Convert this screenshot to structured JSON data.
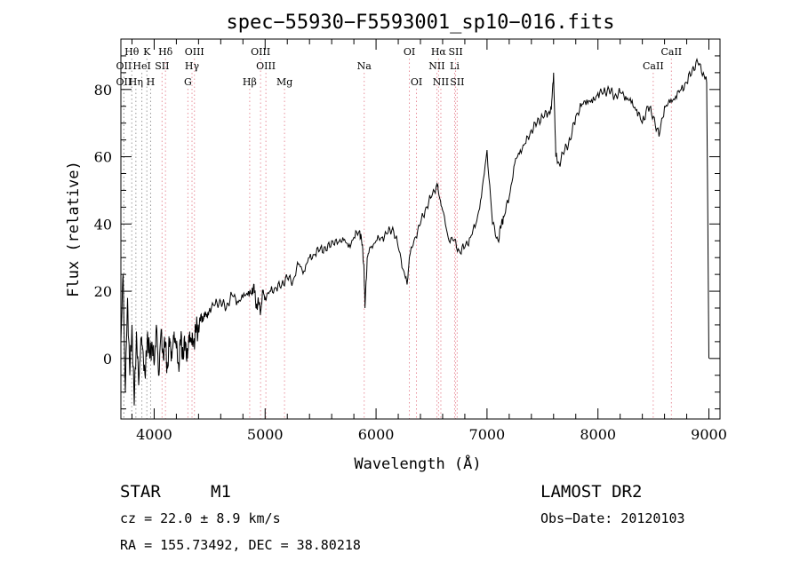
{
  "chart_data": {
    "type": "line",
    "title": "spec−55930−F5593001_sp10−016.fits",
    "xlabel": "Wavelength (Å)",
    "ylabel": "Flux (relative)",
    "xlim": [
      3700,
      9100
    ],
    "ylim": [
      -18,
      95
    ],
    "x_ticks": [
      4000,
      5000,
      6000,
      7000,
      8000,
      9000
    ],
    "y_ticks": [
      0,
      20,
      40,
      60,
      80
    ],
    "series": [
      {
        "x": [
          3700,
          3720,
          3740,
          3760,
          3780,
          3800,
          3820,
          3840,
          3860,
          3880,
          3900,
          3920,
          3940,
          3960,
          3980,
          4000,
          4020,
          4040,
          4060,
          4080,
          4100,
          4120,
          4140,
          4160,
          4180,
          4200,
          4220,
          4240,
          4260,
          4280,
          4300,
          4320,
          4340,
          4360,
          4380,
          4400,
          4420,
          4440,
          4460,
          4480,
          4500,
          4550,
          4600,
          4650,
          4700,
          4750,
          4800,
          4850,
          4880,
          4900,
          4920,
          4940,
          4960,
          4980,
          5000,
          5050,
          5100,
          5150,
          5200,
          5250,
          5300,
          5350,
          5400,
          5450,
          5500,
          5550,
          5600,
          5650,
          5700,
          5750,
          5800,
          5850,
          5870,
          5890,
          5900,
          5920,
          5950,
          6000,
          6050,
          6100,
          6150,
          6200,
          6250,
          6280,
          6300,
          6350,
          6400,
          6450,
          6500,
          6550,
          6560,
          6600,
          6650,
          6700,
          6750,
          6800,
          6850,
          6900,
          6950,
          7000,
          7050,
          7100,
          7130,
          7150,
          7200,
          7250,
          7300,
          7350,
          7400,
          7450,
          7500,
          7550,
          7580,
          7600,
          7620,
          7650,
          7700,
          7750,
          7800,
          7850,
          7900,
          7950,
          8000,
          8050,
          8100,
          8150,
          8200,
          8250,
          8300,
          8350,
          8400,
          8450,
          8500,
          8550,
          8600,
          8650,
          8700,
          8750,
          8800,
          8850,
          8900,
          8950,
          8980,
          9000
        ],
        "y": [
          5,
          25,
          -10,
          18,
          -5,
          10,
          -14,
          8,
          -8,
          6,
          2,
          -6,
          8,
          0,
          5,
          -2,
          10,
          -5,
          7,
          2,
          4,
          -3,
          6,
          0,
          8,
          3,
          -2,
          6,
          1,
          5,
          0,
          8,
          4,
          6,
          9,
          8,
          13,
          11,
          14,
          12,
          15,
          16,
          17,
          15,
          19,
          17,
          18,
          20,
          19,
          22,
          15,
          17,
          14,
          20,
          18,
          20,
          21,
          22,
          24,
          23,
          28,
          26,
          30,
          31,
          33,
          32,
          35,
          34,
          36,
          33,
          36,
          38,
          35,
          28,
          15,
          30,
          33,
          35,
          36,
          37,
          39,
          33,
          26,
          22,
          30,
          36,
          40,
          45,
          48,
          52,
          50,
          44,
          36,
          35,
          32,
          33,
          36,
          40,
          48,
          62,
          40,
          35,
          40,
          42,
          48,
          58,
          62,
          64,
          68,
          70,
          72,
          73,
          74,
          85,
          60,
          58,
          62,
          65,
          72,
          75,
          77,
          76,
          79,
          79,
          80,
          78,
          79,
          78,
          76,
          74,
          70,
          75,
          72,
          66,
          75,
          76,
          78,
          80,
          82,
          86,
          88,
          85,
          82,
          0
        ]
      }
    ],
    "spectral_lines": [
      {
        "name": "Hθ",
        "x": 3798,
        "row": 1
      },
      {
        "name": "K",
        "x": 3934,
        "row": 1
      },
      {
        "name": "Hδ",
        "x": 4102,
        "row": 1
      },
      {
        "name": "OIII",
        "x": 4363,
        "row": 1
      },
      {
        "name": "OIII",
        "x": 4959,
        "row": 1
      },
      {
        "name": "OI",
        "x": 6300,
        "row": 1
      },
      {
        "name": "Hα",
        "x": 6563,
        "row": 1
      },
      {
        "name": "SII",
        "x": 6717,
        "row": 1
      },
      {
        "name": "CaII",
        "x": 8662,
        "row": 1
      },
      {
        "name": "OII",
        "x": 3727,
        "row": 2
      },
      {
        "name": "HeI",
        "x": 3889,
        "row": 2
      },
      {
        "name": "SII",
        "x": 4071,
        "row": 2
      },
      {
        "name": "Hγ",
        "x": 4341,
        "row": 2
      },
      {
        "name": "OIII",
        "x": 5007,
        "row": 2
      },
      {
        "name": "Na",
        "x": 5893,
        "row": 2
      },
      {
        "name": "NII",
        "x": 6548,
        "row": 2
      },
      {
        "name": "Li",
        "x": 6708,
        "row": 2
      },
      {
        "name": "CaII",
        "x": 8498,
        "row": 2
      },
      {
        "name": "OII",
        "x": 3727,
        "row": 3
      },
      {
        "name": "Hη",
        "x": 3835,
        "row": 3
      },
      {
        "name": "H",
        "x": 3968,
        "row": 3
      },
      {
        "name": "G",
        "x": 4304,
        "row": 3
      },
      {
        "name": "Hβ",
        "x": 4861,
        "row": 3
      },
      {
        "name": "Mg",
        "x": 5175,
        "row": 3
      },
      {
        "name": "OI",
        "x": 6364,
        "row": 3
      },
      {
        "name": "NII",
        "x": 6584,
        "row": 3
      },
      {
        "name": "SII",
        "x": 6731,
        "row": 3
      }
    ],
    "spectral_line_color_pink": "#e8909c",
    "spectral_line_color_grey": "#999999"
  },
  "info": {
    "object_class": "STAR",
    "subclass": "M1",
    "survey": "LAMOST DR2",
    "redshift": "cz = 22.0 ± 8.9 km/s",
    "obs_date": "Obs−Date: 20120103",
    "coords": "RA = 155.73492, DEC =  38.80218"
  }
}
